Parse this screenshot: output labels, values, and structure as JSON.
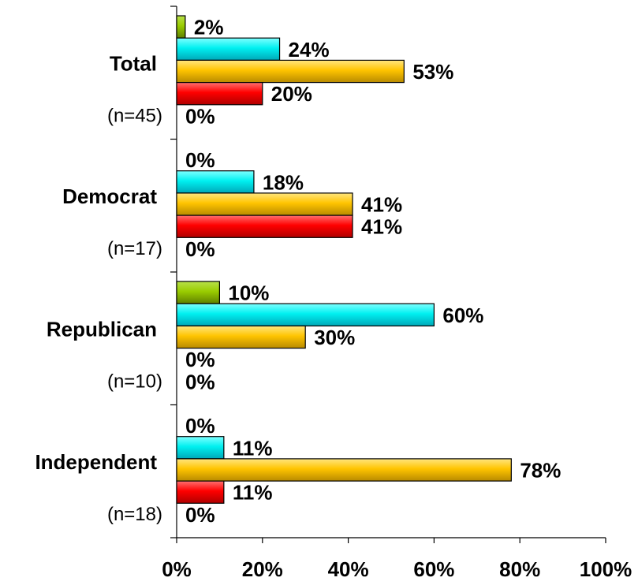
{
  "chart_data": {
    "type": "bar",
    "orientation": "horizontal",
    "categories": [
      {
        "name": "Total",
        "n_label": "(n=45)"
      },
      {
        "name": "Democrat",
        "n_label": "(n=17)"
      },
      {
        "name": "Republican",
        "n_label": "(n=10)"
      },
      {
        "name": "Independent",
        "n_label": "(n=18)"
      }
    ],
    "series": [
      {
        "color": "#99cc00",
        "values": [
          2,
          0,
          10,
          0
        ],
        "labels": [
          "2%",
          "0%",
          "10%",
          "0%"
        ]
      },
      {
        "color": "#00ffff",
        "values": [
          24,
          18,
          60,
          11
        ],
        "labels": [
          "24%",
          "18%",
          "60%",
          "11%"
        ]
      },
      {
        "color": "#ffcc00",
        "values": [
          53,
          41,
          30,
          78
        ],
        "labels": [
          "53%",
          "41%",
          "30%",
          "78%"
        ]
      },
      {
        "color": "#ff0000",
        "values": [
          20,
          41,
          0,
          11
        ],
        "labels": [
          "20%",
          "41%",
          "0%",
          "11%"
        ]
      },
      {
        "color": "#808080",
        "values": [
          0,
          0,
          0,
          0
        ],
        "labels": [
          "0%",
          "0%",
          "0%",
          "0%"
        ]
      }
    ],
    "xlim": [
      0,
      100
    ],
    "xticks": [
      {
        "value": 0,
        "label": "0%"
      },
      {
        "value": 20,
        "label": "20%"
      },
      {
        "value": 40,
        "label": "40%"
      },
      {
        "value": 60,
        "label": "60%"
      },
      {
        "value": 80,
        "label": "80%"
      },
      {
        "value": 100,
        "label": "100%"
      }
    ],
    "grid": false,
    "legend": "none",
    "title": "",
    "xlabel": "",
    "ylabel": ""
  }
}
